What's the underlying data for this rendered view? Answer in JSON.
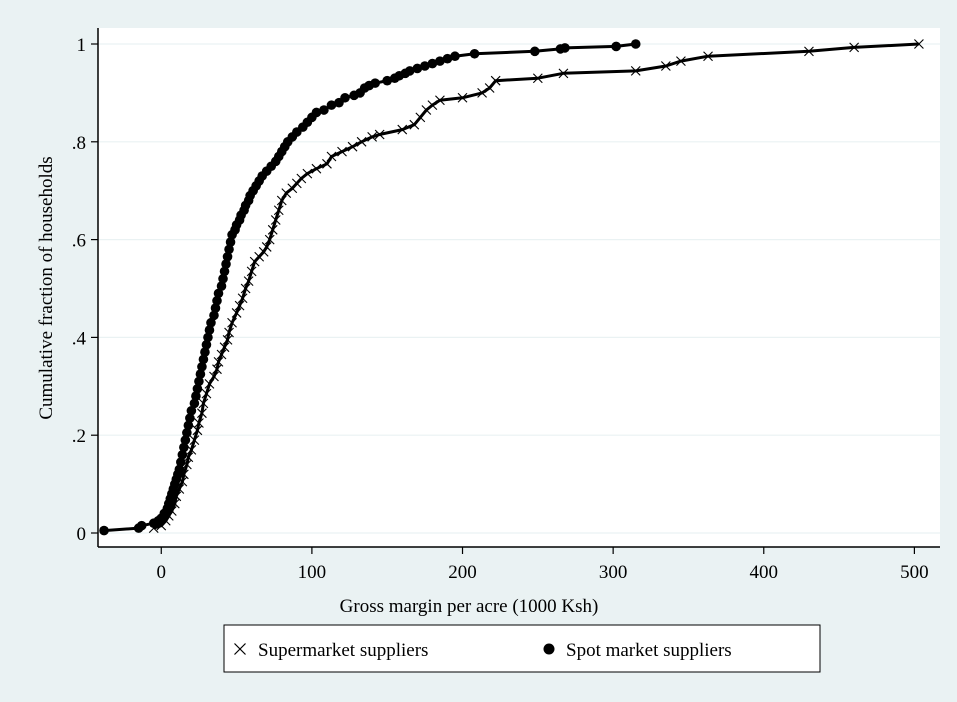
{
  "chart_data": {
    "type": "line",
    "title": "",
    "xlabel": "Gross margin per acre (1000 Ksh)",
    "ylabel": "Cumulative fraction of households",
    "xlim": [
      -40,
      510
    ],
    "ylim": [
      0,
      1.02
    ],
    "x_ticks": [
      {
        "value": 0,
        "label": "0"
      },
      {
        "value": 100,
        "label": "100"
      },
      {
        "value": 200,
        "label": "200"
      },
      {
        "value": 300,
        "label": "300"
      },
      {
        "value": 400,
        "label": "400"
      },
      {
        "value": 500,
        "label": "500"
      }
    ],
    "y_ticks": [
      {
        "value": 0,
        "label": "0"
      },
      {
        "value": 0.2,
        "label": ".2"
      },
      {
        "value": 0.4,
        "label": ".4"
      },
      {
        "value": 0.6,
        "label": ".6"
      },
      {
        "value": 0.8,
        "label": ".8"
      },
      {
        "value": 1,
        "label": "1"
      }
    ],
    "grid": "horizontal",
    "legend_position": "bottom",
    "series": [
      {
        "name": "Supermarket suppliers",
        "marker": "x",
        "color": "#000000",
        "points": [
          [
            -5,
            0.01
          ],
          [
            0,
            0.015
          ],
          [
            3,
            0.025
          ],
          [
            5,
            0.035
          ],
          [
            7,
            0.045
          ],
          [
            9,
            0.06
          ],
          [
            10,
            0.075
          ],
          [
            12,
            0.09
          ],
          [
            14,
            0.105
          ],
          [
            15,
            0.12
          ],
          [
            17,
            0.14
          ],
          [
            18,
            0.155
          ],
          [
            20,
            0.17
          ],
          [
            22,
            0.19
          ],
          [
            24,
            0.21
          ],
          [
            25,
            0.225
          ],
          [
            27,
            0.245
          ],
          [
            28,
            0.265
          ],
          [
            30,
            0.285
          ],
          [
            32,
            0.305
          ],
          [
            35,
            0.32
          ],
          [
            37,
            0.335
          ],
          [
            38,
            0.35
          ],
          [
            40,
            0.365
          ],
          [
            42,
            0.38
          ],
          [
            44,
            0.395
          ],
          [
            45,
            0.41
          ],
          [
            47,
            0.43
          ],
          [
            50,
            0.45
          ],
          [
            52,
            0.465
          ],
          [
            54,
            0.48
          ],
          [
            56,
            0.5
          ],
          [
            58,
            0.515
          ],
          [
            60,
            0.535
          ],
          [
            62,
            0.555
          ],
          [
            65,
            0.565
          ],
          [
            68,
            0.575
          ],
          [
            70,
            0.585
          ],
          [
            72,
            0.6
          ],
          [
            74,
            0.62
          ],
          [
            76,
            0.64
          ],
          [
            78,
            0.66
          ],
          [
            80,
            0.68
          ],
          [
            83,
            0.695
          ],
          [
            87,
            0.705
          ],
          [
            90,
            0.715
          ],
          [
            93,
            0.725
          ],
          [
            97,
            0.735
          ],
          [
            103,
            0.745
          ],
          [
            110,
            0.755
          ],
          [
            113,
            0.77
          ],
          [
            120,
            0.78
          ],
          [
            127,
            0.79
          ],
          [
            133,
            0.8
          ],
          [
            140,
            0.81
          ],
          [
            145,
            0.815
          ],
          [
            160,
            0.825
          ],
          [
            168,
            0.835
          ],
          [
            172,
            0.85
          ],
          [
            176,
            0.865
          ],
          [
            180,
            0.875
          ],
          [
            185,
            0.885
          ],
          [
            200,
            0.89
          ],
          [
            213,
            0.9
          ],
          [
            218,
            0.91
          ],
          [
            222,
            0.925
          ],
          [
            250,
            0.93
          ],
          [
            267,
            0.94
          ],
          [
            315,
            0.945
          ],
          [
            335,
            0.955
          ],
          [
            345,
            0.965
          ],
          [
            363,
            0.975
          ],
          [
            430,
            0.985
          ],
          [
            460,
            0.993
          ],
          [
            503,
            1.0
          ]
        ]
      },
      {
        "name": "Spot market suppliers",
        "marker": "circle",
        "color": "#000000",
        "points": [
          [
            -38,
            0.005
          ],
          [
            -15,
            0.01
          ],
          [
            -13,
            0.015
          ],
          [
            -5,
            0.02
          ],
          [
            -2,
            0.025
          ],
          [
            0,
            0.03
          ],
          [
            2,
            0.04
          ],
          [
            4,
            0.05
          ],
          [
            5,
            0.06
          ],
          [
            6,
            0.07
          ],
          [
            7,
            0.08
          ],
          [
            8,
            0.09
          ],
          [
            9,
            0.1
          ],
          [
            10,
            0.11
          ],
          [
            11,
            0.12
          ],
          [
            12,
            0.13
          ],
          [
            13,
            0.145
          ],
          [
            14,
            0.16
          ],
          [
            15,
            0.175
          ],
          [
            16,
            0.19
          ],
          [
            17,
            0.205
          ],
          [
            18,
            0.22
          ],
          [
            19,
            0.235
          ],
          [
            20,
            0.25
          ],
          [
            22,
            0.265
          ],
          [
            23,
            0.28
          ],
          [
            24,
            0.295
          ],
          [
            25,
            0.31
          ],
          [
            26,
            0.325
          ],
          [
            27,
            0.34
          ],
          [
            28,
            0.355
          ],
          [
            29,
            0.37
          ],
          [
            30,
            0.385
          ],
          [
            31,
            0.4
          ],
          [
            32,
            0.415
          ],
          [
            33,
            0.43
          ],
          [
            35,
            0.445
          ],
          [
            36,
            0.46
          ],
          [
            37,
            0.475
          ],
          [
            38,
            0.49
          ],
          [
            40,
            0.505
          ],
          [
            41,
            0.52
          ],
          [
            42,
            0.535
          ],
          [
            43,
            0.55
          ],
          [
            44,
            0.565
          ],
          [
            45,
            0.58
          ],
          [
            46,
            0.595
          ],
          [
            47,
            0.61
          ],
          [
            49,
            0.62
          ],
          [
            50,
            0.63
          ],
          [
            52,
            0.64
          ],
          [
            53,
            0.65
          ],
          [
            55,
            0.66
          ],
          [
            56,
            0.67
          ],
          [
            58,
            0.68
          ],
          [
            59,
            0.69
          ],
          [
            61,
            0.7
          ],
          [
            63,
            0.71
          ],
          [
            65,
            0.72
          ],
          [
            67,
            0.73
          ],
          [
            70,
            0.74
          ],
          [
            73,
            0.75
          ],
          [
            76,
            0.76
          ],
          [
            78,
            0.77
          ],
          [
            80,
            0.78
          ],
          [
            82,
            0.79
          ],
          [
            84,
            0.8
          ],
          [
            87,
            0.81
          ],
          [
            90,
            0.82
          ],
          [
            94,
            0.83
          ],
          [
            97,
            0.84
          ],
          [
            100,
            0.85
          ],
          [
            103,
            0.86
          ],
          [
            108,
            0.865
          ],
          [
            113,
            0.875
          ],
          [
            118,
            0.88
          ],
          [
            122,
            0.89
          ],
          [
            128,
            0.895
          ],
          [
            132,
            0.9
          ],
          [
            135,
            0.91
          ],
          [
            138,
            0.915
          ],
          [
            142,
            0.92
          ],
          [
            150,
            0.925
          ],
          [
            155,
            0.93
          ],
          [
            158,
            0.935
          ],
          [
            162,
            0.94
          ],
          [
            165,
            0.945
          ],
          [
            170,
            0.95
          ],
          [
            175,
            0.955
          ],
          [
            180,
            0.96
          ],
          [
            185,
            0.965
          ],
          [
            190,
            0.97
          ],
          [
            195,
            0.975
          ],
          [
            208,
            0.98
          ],
          [
            248,
            0.985
          ],
          [
            265,
            0.99
          ],
          [
            268,
            0.992
          ],
          [
            302,
            0.995
          ],
          [
            315,
            1.0
          ]
        ]
      }
    ]
  }
}
